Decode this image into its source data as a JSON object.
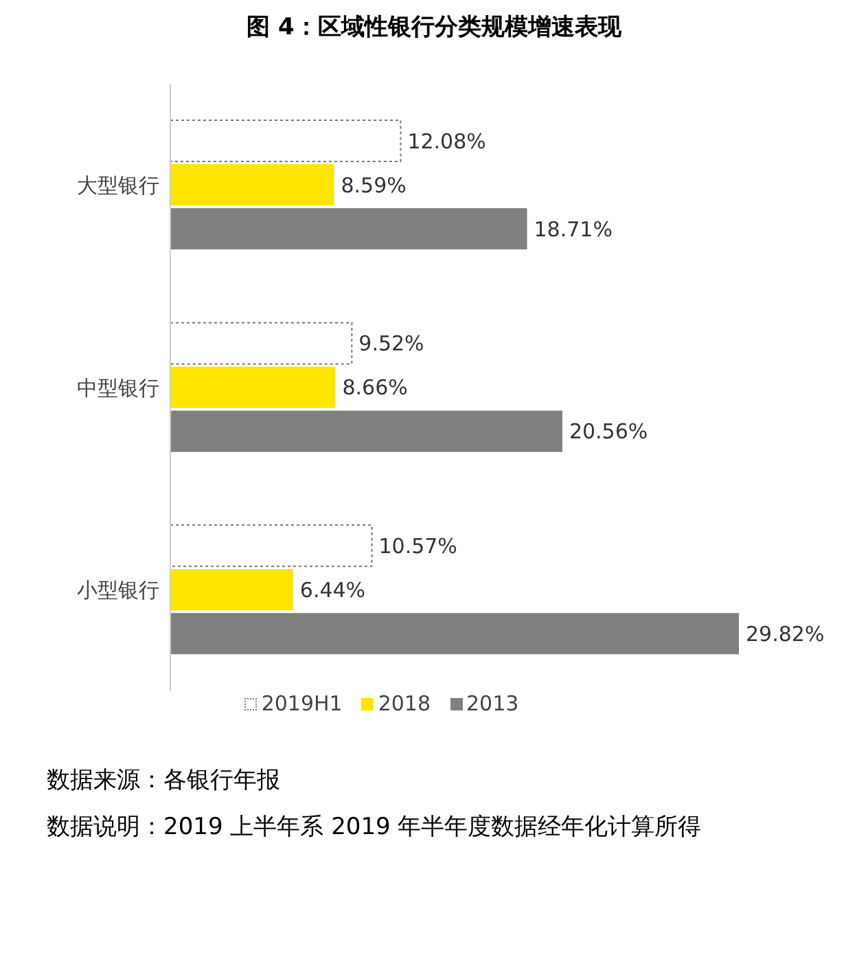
{
  "chart_data": {
    "type": "bar",
    "orientation": "horizontal",
    "title": "图 4：区域性银行分类规模增速表现",
    "categories": [
      "大型银行",
      "中型银行",
      "小型银行"
    ],
    "series": [
      {
        "name": "2019H1",
        "color": "#ffffff",
        "values": [
          12.08,
          9.52,
          10.57
        ],
        "value_labels": [
          "12.08%",
          "9.52%",
          "10.57%"
        ]
      },
      {
        "name": "2018",
        "color": "#ffe600",
        "values": [
          8.59,
          8.66,
          6.44
        ],
        "value_labels": [
          "8.59%",
          "8.66%",
          "6.44%"
        ]
      },
      {
        "name": "2013",
        "color": "#808080",
        "values": [
          18.71,
          20.56,
          29.82
        ],
        "value_labels": [
          "18.71%",
          "20.56%",
          "29.82%"
        ]
      }
    ],
    "legend": "bottom",
    "grid": false,
    "annotations": [
      "数据来源：各银行年报",
      "数据说明：2019 上半年系 2019 年半年度数据经年化计算所得"
    ]
  }
}
